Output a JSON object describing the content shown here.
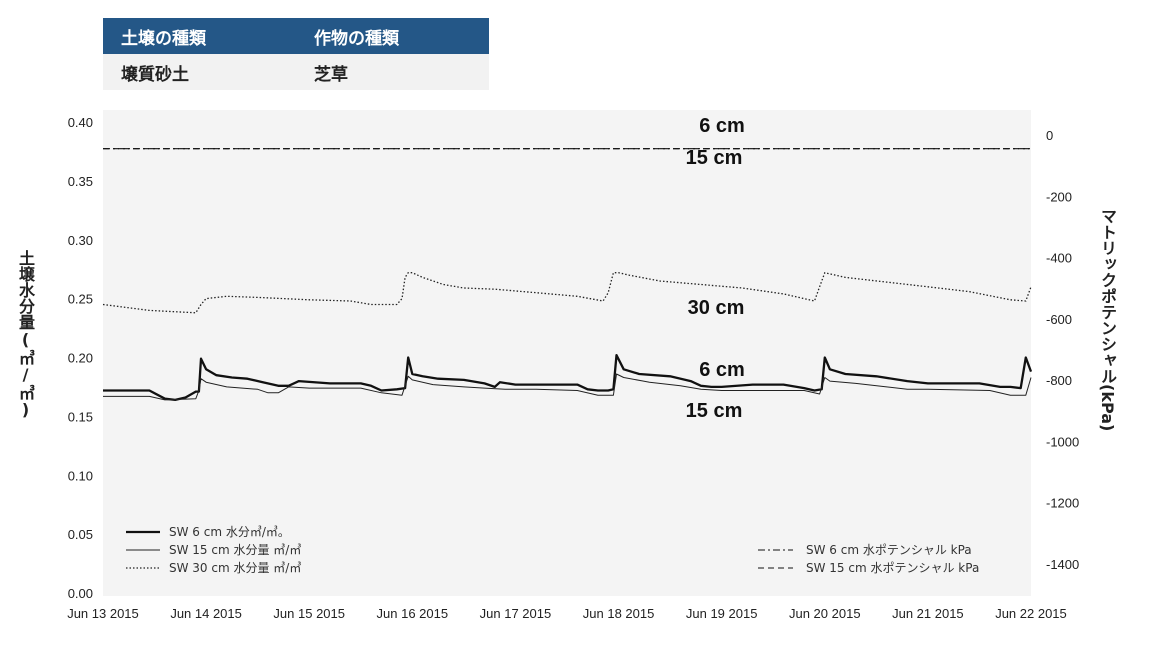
{
  "info_table": {
    "headers": [
      "土壌の種類",
      "作物の種類"
    ],
    "values": [
      "壌質砂土",
      "芝草"
    ]
  },
  "chart_data": {
    "type": "line",
    "y_left_label": "土壌水分量(㎥/㎥)",
    "y_right_label": "マトリックポテンシャル(kPa)",
    "y_left_range": [
      0.0,
      0.4
    ],
    "y_left_ticks": [
      "0.00",
      "0.05",
      "0.10",
      "0.15",
      "0.20",
      "0.25",
      "0.30",
      "0.35",
      "0.40"
    ],
    "y_right_range": [
      -1500,
      50
    ],
    "y_right_ticks": [
      "0",
      "-200",
      "-400",
      "-600",
      "-800",
      "-1000",
      "-1200",
      "-1400"
    ],
    "x_range": [
      "2015-06-13",
      "2015-06-22"
    ],
    "x_ticks": [
      "Jun 13 2015",
      "Jun 14 2015",
      "Jun 15 2015",
      "Jun 16 2015",
      "Jun 17 2015",
      "Jun 18 2015",
      "Jun 19 2015",
      "Jun 20 2015",
      "Jun 21 2015",
      "Jun 22 2015"
    ],
    "series": [
      {
        "name": "SW 6 cm 水分㎥/㎥。",
        "axis": "left",
        "style": "thick",
        "x": [
          0,
          0.45,
          0.6,
          0.7,
          0.8,
          0.9,
          0.93,
          0.95,
          1.0,
          1.1,
          1.25,
          1.4,
          1.55,
          1.7,
          1.8,
          1.9,
          2.2,
          2.5,
          2.6,
          2.7,
          2.85,
          2.93,
          2.96,
          3.0,
          3.1,
          3.25,
          3.5,
          3.7,
          3.8,
          3.85,
          4.0,
          4.6,
          4.7,
          4.8,
          4.9,
          4.95,
          4.98,
          5.05,
          5.2,
          5.5,
          5.7,
          5.8,
          5.9,
          6.0,
          6.3,
          6.6,
          6.8,
          6.9,
          6.97,
          7.0,
          7.05,
          7.2,
          7.5,
          7.8,
          8.0,
          8.5,
          8.7,
          8.8,
          8.9,
          8.95,
          9.0
        ],
        "y": [
          0.172,
          0.172,
          0.165,
          0.164,
          0.166,
          0.171,
          0.171,
          0.199,
          0.19,
          0.185,
          0.183,
          0.182,
          0.179,
          0.176,
          0.176,
          0.18,
          0.178,
          0.178,
          0.176,
          0.172,
          0.173,
          0.174,
          0.2,
          0.186,
          0.184,
          0.182,
          0.181,
          0.178,
          0.175,
          0.179,
          0.177,
          0.177,
          0.173,
          0.172,
          0.172,
          0.173,
          0.202,
          0.19,
          0.186,
          0.184,
          0.18,
          0.176,
          0.175,
          0.175,
          0.177,
          0.177,
          0.174,
          0.172,
          0.173,
          0.2,
          0.19,
          0.186,
          0.184,
          0.18,
          0.178,
          0.178,
          0.175,
          0.175,
          0.174,
          0.2,
          0.188
        ]
      },
      {
        "name": "SW 15 cm 水分量 ㎥/㎥",
        "axis": "left",
        "style": "thin",
        "x": [
          0,
          0.45,
          0.6,
          0.9,
          0.93,
          0.95,
          1.0,
          1.2,
          1.5,
          1.6,
          1.7,
          1.8,
          2.0,
          2.5,
          2.7,
          2.9,
          2.96,
          3.0,
          3.2,
          3.5,
          3.7,
          3.9,
          4.2,
          4.6,
          4.8,
          4.95,
          4.98,
          5.05,
          5.3,
          5.6,
          5.8,
          6.0,
          6.5,
          6.8,
          6.95,
          7.0,
          7.05,
          7.3,
          7.6,
          7.8,
          8.0,
          8.6,
          8.8,
          8.95,
          9.0
        ],
        "y": [
          0.167,
          0.167,
          0.164,
          0.165,
          0.172,
          0.182,
          0.179,
          0.175,
          0.173,
          0.17,
          0.17,
          0.175,
          0.174,
          0.174,
          0.17,
          0.168,
          0.184,
          0.181,
          0.177,
          0.175,
          0.174,
          0.173,
          0.173,
          0.172,
          0.168,
          0.168,
          0.186,
          0.183,
          0.179,
          0.176,
          0.173,
          0.172,
          0.172,
          0.172,
          0.169,
          0.183,
          0.18,
          0.178,
          0.175,
          0.173,
          0.173,
          0.172,
          0.168,
          0.168,
          0.183
        ]
      },
      {
        "name": "SW 30 cm 水分量 ㎥/㎥",
        "axis": "left",
        "style": "dotted",
        "x": [
          0,
          0.45,
          0.9,
          0.95,
          1.0,
          1.2,
          1.5,
          2.0,
          2.4,
          2.6,
          2.85,
          2.9,
          2.93,
          2.96,
          3.0,
          3.1,
          3.3,
          3.5,
          3.8,
          4.2,
          4.6,
          4.85,
          4.9,
          4.95,
          5.0,
          5.1,
          5.4,
          5.8,
          6.2,
          6.6,
          6.9,
          6.95,
          7.0,
          7.05,
          7.2,
          7.6,
          8.0,
          8.4,
          8.8,
          8.95,
          9.0
        ],
        "y": [
          0.245,
          0.24,
          0.238,
          0.245,
          0.25,
          0.252,
          0.251,
          0.249,
          0.248,
          0.245,
          0.245,
          0.25,
          0.268,
          0.272,
          0.272,
          0.268,
          0.262,
          0.259,
          0.258,
          0.255,
          0.252,
          0.248,
          0.255,
          0.272,
          0.272,
          0.27,
          0.265,
          0.262,
          0.259,
          0.254,
          0.248,
          0.26,
          0.272,
          0.271,
          0.268,
          0.264,
          0.26,
          0.256,
          0.249,
          0.248,
          0.26
        ]
      },
      {
        "name": "SW 6 cm 水ポテンシャル kPa",
        "axis": "right",
        "style": "dashdot",
        "x": [
          0,
          9
        ],
        "y": [
          -25,
          -25
        ]
      },
      {
        "name": "SW 15 cm 水ポテンシャル kPa",
        "axis": "right",
        "style": "dashed",
        "x": [
          0,
          9
        ],
        "y": [
          -25,
          -25
        ]
      }
    ],
    "annotations": [
      {
        "text": "6 cm"
      },
      {
        "text": "15 cm"
      },
      {
        "text": "30 cm"
      },
      {
        "text": "6 cm"
      },
      {
        "text": "15 cm"
      }
    ],
    "legend_left": [
      "SW 6 cm 水分㎥/㎥。",
      "SW 15 cm 水分量 ㎥/㎥",
      "SW 30 cm 水分量 ㎥/㎥"
    ],
    "legend_right": [
      "SW 6 cm 水ポテンシャル kPa",
      "SW 15 cm 水ポテンシャル kPa"
    ],
    "legend_placement": "bottom",
    "grid": false
  }
}
